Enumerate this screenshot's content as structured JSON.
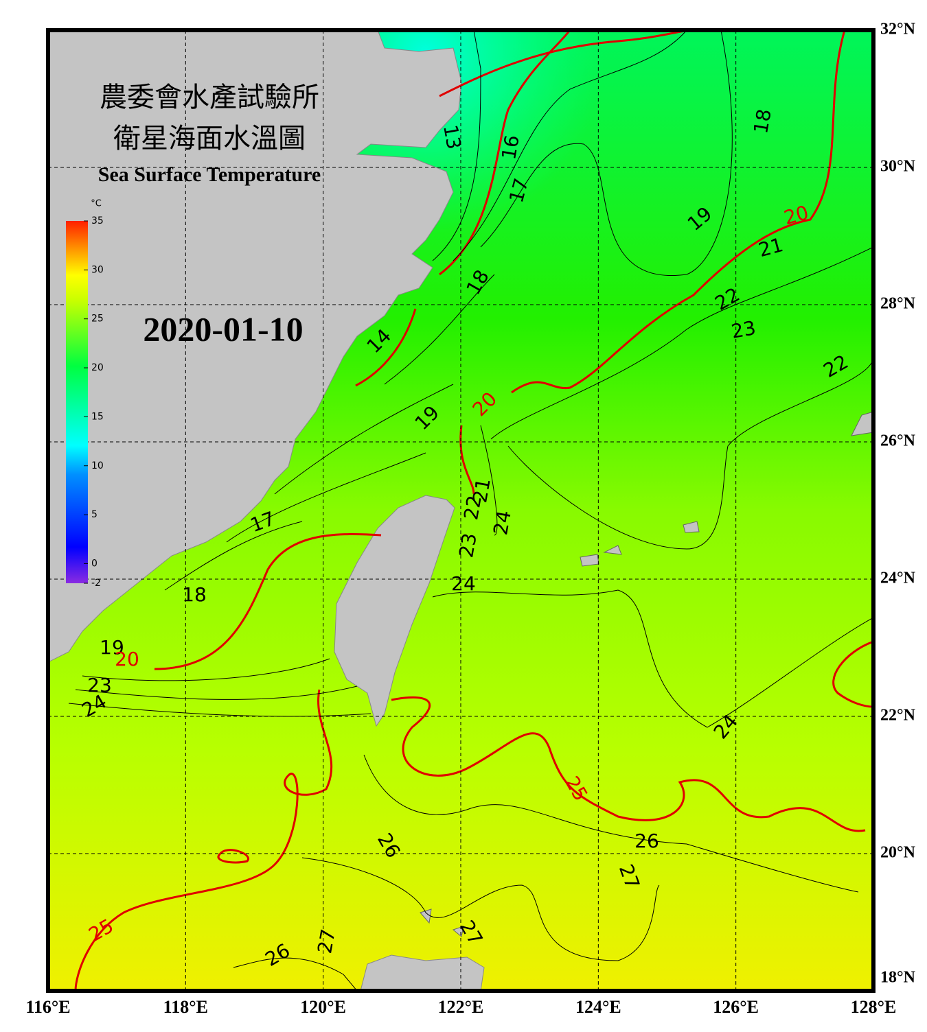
{
  "header": {
    "title_line1": "農委會水產試驗所",
    "title_line2": "衛星海面水溫圖",
    "subtitle": "Sea Surface Temperature",
    "date": "2020-01-10"
  },
  "colorbar": {
    "unit": "°C",
    "range": [
      -2,
      35
    ],
    "ticks": [
      35,
      30,
      25,
      20,
      15,
      10,
      5,
      0,
      -2
    ]
  },
  "longitude_ticks": [
    {
      "value": 116,
      "label": "116°E"
    },
    {
      "value": 118,
      "label": "118°E"
    },
    {
      "value": 120,
      "label": "120°E"
    },
    {
      "value": 122,
      "label": "122°E"
    },
    {
      "value": 124,
      "label": "124°E"
    },
    {
      "value": 126,
      "label": "126°E"
    },
    {
      "value": 128,
      "label": "128°E"
    }
  ],
  "latitude_ticks": [
    {
      "value": 32,
      "label": "32°N"
    },
    {
      "value": 30,
      "label": "30°N"
    },
    {
      "value": 28,
      "label": "28°N"
    },
    {
      "value": 26,
      "label": "26°N"
    },
    {
      "value": 24,
      "label": "24°N"
    },
    {
      "value": 22,
      "label": "22°N"
    },
    {
      "value": 20,
      "label": "20°N"
    },
    {
      "value": 18,
      "label": "18°N"
    }
  ],
  "contour_labels": [
    13,
    16,
    17,
    18,
    14,
    19,
    20,
    21,
    22,
    23,
    24,
    24,
    17,
    18,
    19,
    20,
    23,
    24,
    19,
    20,
    21,
    22,
    23,
    22,
    18,
    24,
    25,
    26,
    27,
    26,
    27,
    26,
    25,
    27
  ]
}
